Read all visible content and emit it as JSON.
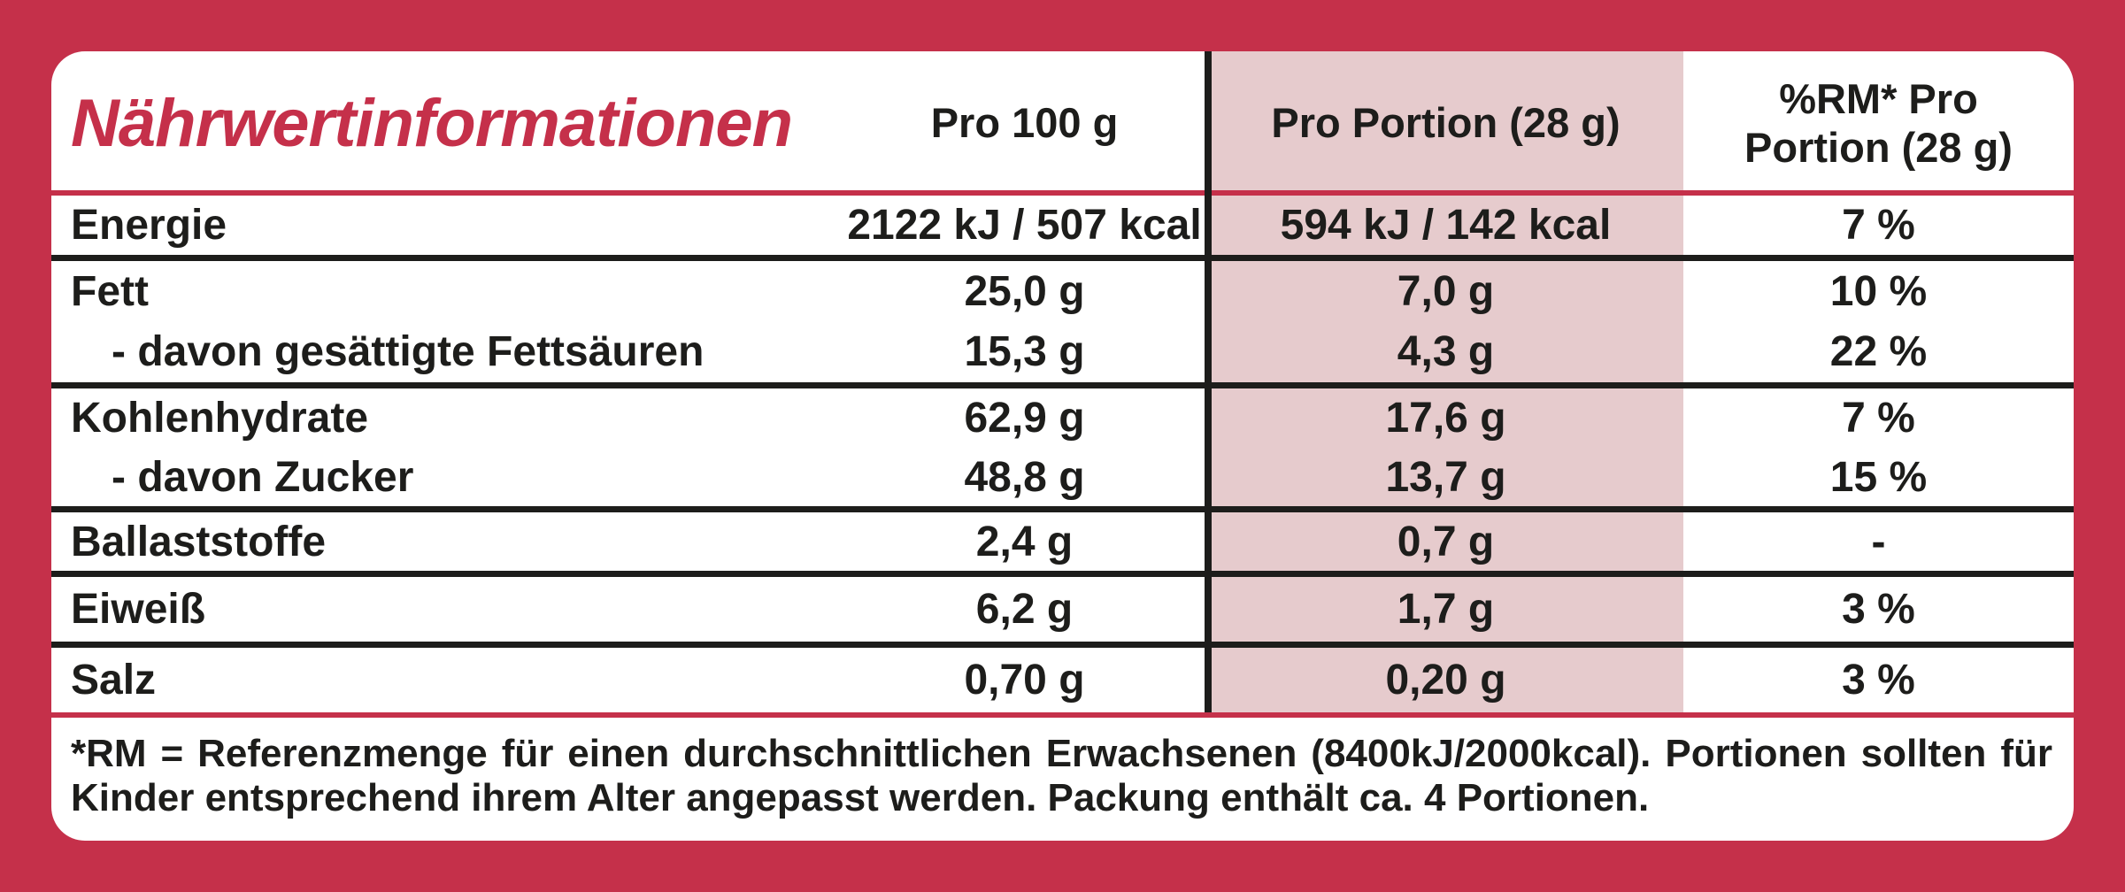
{
  "title": "Nährwertinformationen",
  "columns": {
    "per100": "Pro 100 g",
    "portion": "Pro Portion (28 g)",
    "rm_line1": "%RM* Pro",
    "rm_line2": "Portion (28 g)"
  },
  "rows": [
    {
      "label": "Energie",
      "per100": "2122 kJ / 507 kcal",
      "portion": "594 kJ / 142 kcal",
      "rm": "7 %"
    },
    {
      "label": "Fett",
      "per100": "25,0 g",
      "portion": "7,0 g",
      "rm": "10 %"
    },
    {
      "label": "- davon gesättigte Fettsäuren",
      "per100": "15,3 g",
      "portion": "4,3 g",
      "rm": "22 %"
    },
    {
      "label": "Kohlenhydrate",
      "per100": "62,9 g",
      "portion": "17,6 g",
      "rm": "7 %"
    },
    {
      "label": "- davon Zucker",
      "per100": "48,8 g",
      "portion": "13,7 g",
      "rm": "15 %"
    },
    {
      "label": "Ballaststoffe",
      "per100": "2,4 g",
      "portion": "0,7 g",
      "rm": "-"
    },
    {
      "label": "Eiweiß",
      "per100": "6,2 g",
      "portion": "1,7 g",
      "rm": "3 %"
    },
    {
      "label": "Salz",
      "per100": "0,70 g",
      "portion": "0,20 g",
      "rm": "3 %"
    }
  ],
  "footnote": {
    "lines": [
      "*RM = Referenzmenge für einen durchschnittlichen Erwachsenen (8400kJ/2000kcal). Portionen sollten für",
      "Kinder entsprechend ihrem Alter angepasst werden. Packung enthält ca. 4 Portionen."
    ]
  },
  "colors": {
    "frame_red": "#c5304a",
    "portion_highlight_pink": "#e6cbcd",
    "text_black": "#1d1d1b"
  }
}
